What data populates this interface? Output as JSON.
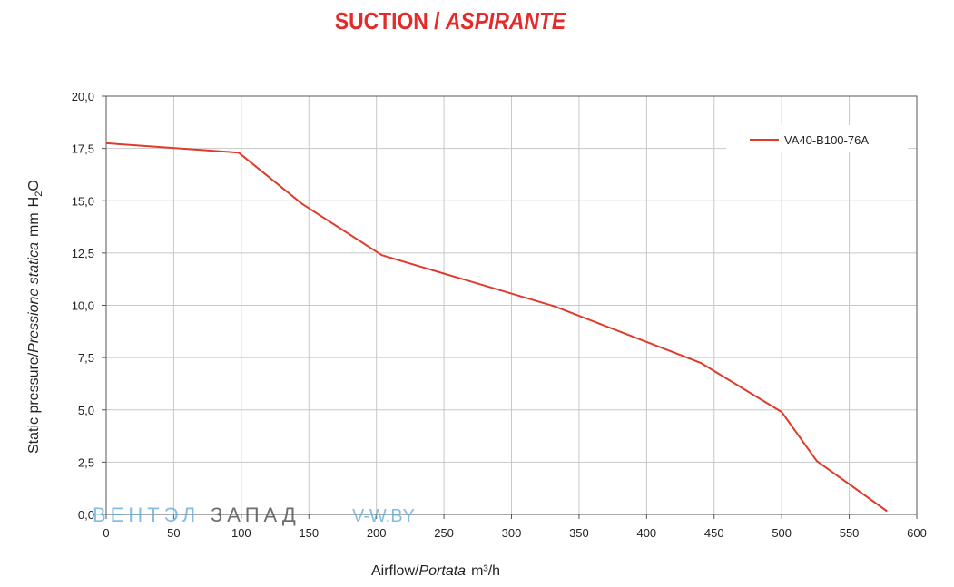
{
  "title": {
    "main": "SUCTION /",
    "italic": "ASPIRANTE"
  },
  "watermark": {
    "part1": "ВЕНТЭЛ",
    "part2": "ЗАПАД",
    "part3": "V-W.BY"
  },
  "colors": {
    "line": "#e03a2b",
    "title": "#e52a2a",
    "grid": "#c8c8c8"
  },
  "chart_data": {
    "type": "line",
    "xlabel_prefix": "Airflow",
    "xlabel_italic": "Portata",
    "xlabel_unit": "m³/h",
    "ylabel_prefix": "Static pressure",
    "ylabel_italic": "Pressione statica",
    "ylabel_unit": "mm",
    "ylabel_unit2": "H",
    "ylabel_sub": "2",
    "ylabel_unit3": "O",
    "xlim": [
      0,
      600
    ],
    "ylim": [
      0,
      20
    ],
    "x_ticks": [
      "0",
      "50",
      "100",
      "150",
      "200",
      "250",
      "300",
      "350",
      "400",
      "450",
      "500",
      "550",
      "600"
    ],
    "x_tick_values": [
      0,
      50,
      100,
      150,
      200,
      250,
      300,
      350,
      400,
      450,
      500,
      550,
      600
    ],
    "y_ticks": [
      "0,0",
      "2,5",
      "5,0",
      "7,5",
      "10,0",
      "12,5",
      "15,0",
      "17,5",
      "20,0"
    ],
    "y_tick_values": [
      0,
      2.5,
      5,
      7.5,
      10,
      12.5,
      15,
      17.5,
      20
    ],
    "grid": true,
    "legend_position": "top-right",
    "series": [
      {
        "name": "VA40-B100-76A",
        "x": [
          0,
          98,
          145,
          204,
          332,
          440,
          500,
          526,
          578
        ],
        "y": [
          17.75,
          17.3,
          14.85,
          12.4,
          9.95,
          7.25,
          4.9,
          2.55,
          0.15
        ]
      }
    ]
  }
}
